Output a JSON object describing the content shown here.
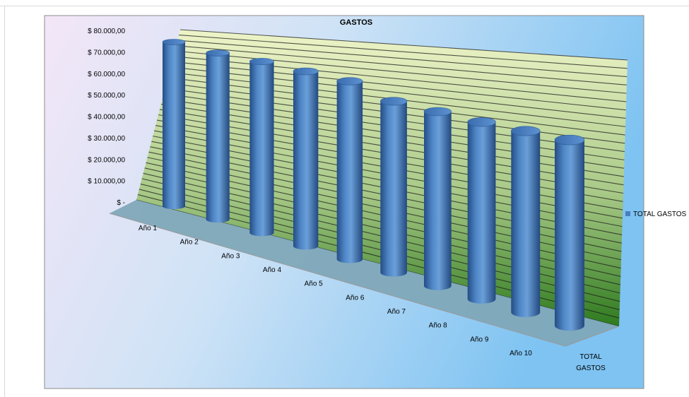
{
  "chart_data": {
    "type": "bar",
    "style": "3d-cylinder",
    "title": "GASTOS",
    "categories": [
      "Año 1",
      "Año 2",
      "Año 3",
      "Año 4",
      "Año 5",
      "Año 6",
      "Año 7",
      "Año 8",
      "Año 9",
      "Año 10"
    ],
    "series": [
      {
        "name": "TOTAL GASTOS",
        "color": "#4a7ebb",
        "values": [
          63000,
          62000,
          62000,
          61500,
          61000,
          57000,
          56500,
          56000,
          56000,
          56000
        ]
      }
    ],
    "depth_axis_label": "TOTAL GASTOS",
    "y_ticks": [
      "$ -",
      "$ 10.000,00",
      "$ 20.000,00",
      "$ 30.000,00",
      "$ 40.000,00",
      "$ 50.000,00",
      "$ 60.000,00",
      "$ 70.000,00",
      "$ 80.000,00"
    ],
    "ylim": [
      0,
      80000
    ],
    "legend_position": "right",
    "grid": true,
    "colors": {
      "floor": "#7fa8b8",
      "wall_top": "#eef4c8",
      "wall_bottom": "#2e7a1e",
      "gridline": "#1e1e1e",
      "background_left": "#f3e6f7",
      "background_right": "#7ec3f2"
    }
  }
}
